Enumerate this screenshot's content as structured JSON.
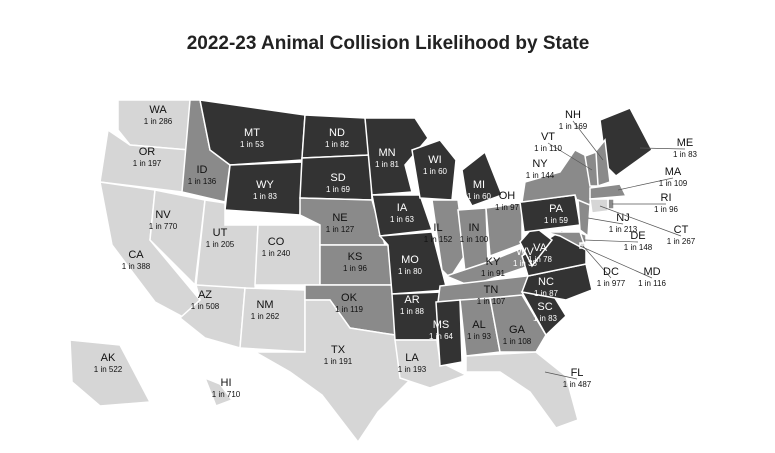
{
  "title": "2022-23 Animal Collision Likelihood by State",
  "states": [
    {
      "abbr": "WA",
      "odds": "1 in 286",
      "color": "#d6d6d6"
    },
    {
      "abbr": "OR",
      "odds": "1 in 197",
      "color": "#d6d6d6"
    },
    {
      "abbr": "CA",
      "odds": "1 in 388",
      "color": "#d6d6d6"
    },
    {
      "abbr": "NV",
      "odds": "1 in 770",
      "color": "#d6d6d6"
    },
    {
      "abbr": "ID",
      "odds": "1 in 136",
      "color": "#8a8a8a"
    },
    {
      "abbr": "MT",
      "odds": "1 in 53",
      "color": "#333333"
    },
    {
      "abbr": "WY",
      "odds": "1 in 83",
      "color": "#333333"
    },
    {
      "abbr": "UT",
      "odds": "1 in 205",
      "color": "#d6d6d6"
    },
    {
      "abbr": "CO",
      "odds": "1 in 240",
      "color": "#d6d6d6"
    },
    {
      "abbr": "AZ",
      "odds": "1 in 508",
      "color": "#d6d6d6"
    },
    {
      "abbr": "NM",
      "odds": "1 in 262",
      "color": "#d6d6d6"
    },
    {
      "abbr": "ND",
      "odds": "1 in 82",
      "color": "#333333"
    },
    {
      "abbr": "SD",
      "odds": "1 in 69",
      "color": "#333333"
    },
    {
      "abbr": "NE",
      "odds": "1 in 127",
      "color": "#8a8a8a"
    },
    {
      "abbr": "KS",
      "odds": "1 in 96",
      "color": "#8a8a8a"
    },
    {
      "abbr": "OK",
      "odds": "1 in 119",
      "color": "#8a8a8a"
    },
    {
      "abbr": "TX",
      "odds": "1 in 191",
      "color": "#d6d6d6"
    },
    {
      "abbr": "MN",
      "odds": "1 in 81",
      "color": "#333333"
    },
    {
      "abbr": "IA",
      "odds": "1 in 63",
      "color": "#333333"
    },
    {
      "abbr": "MO",
      "odds": "1 in 80",
      "color": "#333333"
    },
    {
      "abbr": "AR",
      "odds": "1 in 88",
      "color": "#333333"
    },
    {
      "abbr": "LA",
      "odds": "1 in 193",
      "color": "#d6d6d6"
    },
    {
      "abbr": "WI",
      "odds": "1 in 60",
      "color": "#333333"
    },
    {
      "abbr": "MI",
      "odds": "1 in 60",
      "color": "#333333"
    },
    {
      "abbr": "IL",
      "odds": "1 in 152",
      "color": "#8a8a8a"
    },
    {
      "abbr": "IN",
      "odds": "1 in 100",
      "color": "#8a8a8a"
    },
    {
      "abbr": "OH",
      "odds": "1 in 97",
      "color": "#8a8a8a"
    },
    {
      "abbr": "KY",
      "odds": "1 in 91",
      "color": "#8a8a8a"
    },
    {
      "abbr": "TN",
      "odds": "1 in 107",
      "color": "#8a8a8a"
    },
    {
      "abbr": "MS",
      "odds": "1 in 64",
      "color": "#333333"
    },
    {
      "abbr": "AL",
      "odds": "1 in 93",
      "color": "#8a8a8a"
    },
    {
      "abbr": "GA",
      "odds": "1 in 108",
      "color": "#8a8a8a"
    },
    {
      "abbr": "FL",
      "odds": "1 in 487",
      "color": "#d6d6d6"
    },
    {
      "abbr": "SC",
      "odds": "1 in 83",
      "color": "#333333"
    },
    {
      "abbr": "NC",
      "odds": "1 in 87",
      "color": "#333333"
    },
    {
      "abbr": "VA",
      "odds": "1 in 78",
      "color": "#333333"
    },
    {
      "abbr": "WV",
      "odds": "1 in 38",
      "color": "#333333"
    },
    {
      "abbr": "PA",
      "odds": "1 in 59",
      "color": "#333333"
    },
    {
      "abbr": "NY",
      "odds": "1 in 144",
      "color": "#8a8a8a"
    },
    {
      "abbr": "NJ",
      "odds": "1 in 213",
      "color": "#8a8a8a"
    },
    {
      "abbr": "DE",
      "odds": "1 in 148",
      "color": "#8a8a8a"
    },
    {
      "abbr": "MD",
      "odds": "1 in 116",
      "color": "#8a8a8a"
    },
    {
      "abbr": "DC",
      "odds": "1 in 977",
      "color": "#d6d6d6"
    },
    {
      "abbr": "ME",
      "odds": "1 in 83",
      "color": "#333333"
    },
    {
      "abbr": "NH",
      "odds": "1 in 169",
      "color": "#8a8a8a"
    },
    {
      "abbr": "VT",
      "odds": "1 in 110",
      "color": "#8a8a8a"
    },
    {
      "abbr": "MA",
      "odds": "1 in 109",
      "color": "#8a8a8a"
    },
    {
      "abbr": "RI",
      "odds": "1 in 96",
      "color": "#8a8a8a"
    },
    {
      "abbr": "CT",
      "odds": "1 in 267",
      "color": "#d6d6d6"
    },
    {
      "abbr": "AK",
      "odds": "1 in 522",
      "color": "#d6d6d6"
    },
    {
      "abbr": "HI",
      "odds": "1 in 710",
      "color": "#d6d6d6"
    }
  ]
}
